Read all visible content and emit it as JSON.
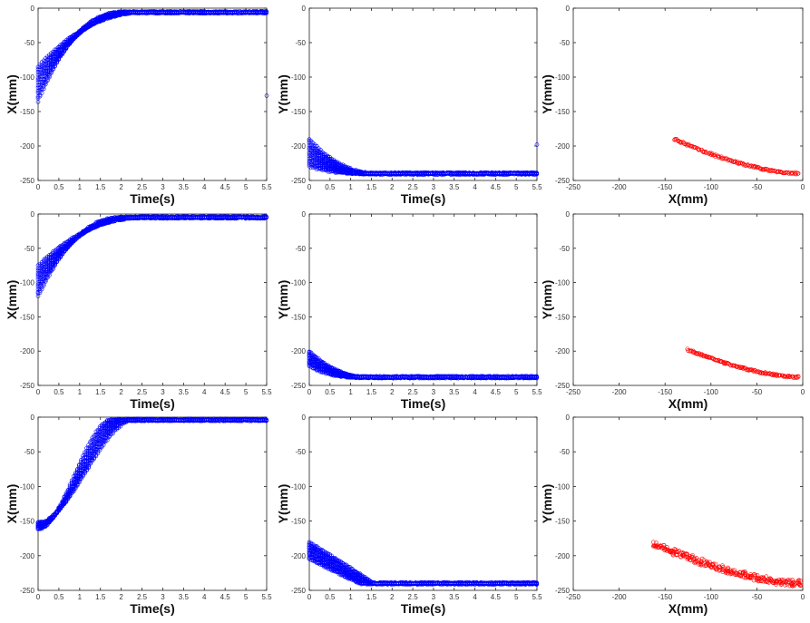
{
  "colors": {
    "blue": "#0000ff",
    "red": "#ff0000"
  },
  "chart_data": [
    {
      "type": "scatter",
      "panel": "row1-col1",
      "xlabel": "Time(s)",
      "ylabel": "X(mm)",
      "xlim": [
        0,
        5.5
      ],
      "ylim": [
        -250,
        0
      ],
      "xticks": [
        "0",
        "0.5",
        "1",
        "1.5",
        "2",
        "2.5",
        "3",
        "3.5",
        "4",
        "4.5",
        "5",
        "5.5"
      ],
      "yticks": [
        "0",
        "-50",
        "-100",
        "-150",
        "-200",
        "-250"
      ],
      "color": "blue",
      "series": [
        {
          "values": {
            "kind": "time",
            "y0": [
              -135,
              -85
            ],
            "t_end": 2.5,
            "y_end": -6,
            "dense": true,
            "outlier": [
              5.5,
              -127
            ]
          }
        }
      ]
    },
    {
      "type": "scatter",
      "panel": "row1-col2",
      "xlabel": "Time(s)",
      "ylabel": "Y(mm)",
      "xlim": [
        0,
        5.5
      ],
      "ylim": [
        -250,
        0
      ],
      "xticks": [
        "0",
        "0.5",
        "1",
        "1.5",
        "2",
        "2.5",
        "3",
        "3.5",
        "4",
        "4.5",
        "5",
        "5.5"
      ],
      "yticks": [
        "0",
        "-50",
        "-100",
        "-150",
        "-200",
        "-250"
      ],
      "color": "blue",
      "series": [
        {
          "values": {
            "kind": "time",
            "y0": [
              -230,
              -190
            ],
            "t_end": 1.6,
            "y_end": -240,
            "dense": true,
            "outlier": [
              5.5,
              -198
            ]
          }
        }
      ]
    },
    {
      "type": "scatter",
      "panel": "row1-col3",
      "xlabel": "X(mm)",
      "ylabel": "Y(mm)",
      "xlim": [
        -250,
        0
      ],
      "ylim": [
        -250,
        0
      ],
      "xticks": [
        "-250",
        "-200",
        "-150",
        "-100",
        "-50",
        "0"
      ],
      "yticks": [
        "0",
        "-50",
        "-100",
        "-150",
        "-200",
        "-250"
      ],
      "color": "red",
      "series": [
        {
          "values": {
            "kind": "xy",
            "x": [
              -140,
              -5
            ],
            "y": [
              -190,
              -240
            ],
            "width": 2.5
          }
        }
      ]
    },
    {
      "type": "scatter",
      "panel": "row2-col1",
      "xlabel": "Time(s)",
      "ylabel": "X(mm)",
      "xlim": [
        0,
        5.5
      ],
      "ylim": [
        -250,
        0
      ],
      "xticks": [
        "0",
        "0.5",
        "1",
        "1.5",
        "2",
        "2.5",
        "3",
        "3.5",
        "4",
        "4.5",
        "5",
        "5.5"
      ],
      "yticks": [
        "0",
        "-50",
        "-100",
        "-150",
        "-200",
        "-250"
      ],
      "color": "blue",
      "series": [
        {
          "values": {
            "kind": "time",
            "y0": [
              -120,
              -75
            ],
            "t_end": 2.5,
            "y_end": -5,
            "dense": true
          }
        }
      ]
    },
    {
      "type": "scatter",
      "panel": "row2-col2",
      "xlabel": "Time(s)",
      "ylabel": "Y(mm)",
      "xlim": [
        0,
        5.5
      ],
      "ylim": [
        -250,
        0
      ],
      "xticks": [
        "0",
        "0.5",
        "1",
        "1.5",
        "2",
        "2.5",
        "3",
        "3.5",
        "4",
        "4.5",
        "5",
        "5.5"
      ],
      "yticks": [
        "0",
        "-50",
        "-100",
        "-150",
        "-200",
        "-250"
      ],
      "color": "blue",
      "series": [
        {
          "values": {
            "kind": "time",
            "y0": [
              -222,
              -200
            ],
            "t_end": 1.4,
            "y_end": -238,
            "dense": true
          }
        }
      ]
    },
    {
      "type": "scatter",
      "panel": "row2-col3",
      "xlabel": "X(mm)",
      "ylabel": "Y(mm)",
      "xlim": [
        -250,
        0
      ],
      "ylim": [
        -250,
        0
      ],
      "xticks": [
        "-250",
        "-200",
        "-150",
        "-100",
        "-50",
        "0"
      ],
      "yticks": [
        "0",
        "-50",
        "-100",
        "-150",
        "-200",
        "-250"
      ],
      "color": "red",
      "series": [
        {
          "values": {
            "kind": "xy",
            "x": [
              -125,
              -5
            ],
            "y": [
              -198,
              -238
            ],
            "width": 2.5
          }
        }
      ]
    },
    {
      "type": "scatter",
      "panel": "row3-col1",
      "xlabel": "Time(s)",
      "ylabel": "X(mm)",
      "xlim": [
        0,
        5.5
      ],
      "ylim": [
        -250,
        0
      ],
      "xticks": [
        "0",
        "0.5",
        "1",
        "1.5",
        "2",
        "2.5",
        "3",
        "3.5",
        "4",
        "4.5",
        "5",
        "5.5"
      ],
      "yticks": [
        "0",
        "-50",
        "-100",
        "-150",
        "-200",
        "-250"
      ],
      "color": "blue",
      "series": [
        {
          "values": {
            "kind": "time",
            "y0": [
              -162,
              -152
            ],
            "t_end": 2.2,
            "y_end": -4,
            "dense": true,
            "shape": "sigmoid"
          }
        }
      ]
    },
    {
      "type": "scatter",
      "panel": "row3-col2",
      "xlabel": "Time(s)",
      "ylabel": "Y(mm)",
      "xlim": [
        0,
        5.5
      ],
      "ylim": [
        -250,
        0
      ],
      "xticks": [
        "0",
        "0.5",
        "1",
        "1.5",
        "2",
        "2.5",
        "3",
        "3.5",
        "4",
        "4.5",
        "5",
        "5.5"
      ],
      "yticks": [
        "0",
        "-50",
        "-100",
        "-150",
        "-200",
        "-250"
      ],
      "color": "blue",
      "series": [
        {
          "values": {
            "kind": "time",
            "y0": [
              -205,
              -180
            ],
            "t_end": 1.5,
            "y_end": -240,
            "dense": true,
            "shape": "linear"
          }
        }
      ]
    },
    {
      "type": "scatter",
      "panel": "row3-col3",
      "xlabel": "X(mm)",
      "ylabel": "Y(mm)",
      "xlim": [
        -250,
        0
      ],
      "ylim": [
        -250,
        0
      ],
      "xticks": [
        "-250",
        "-200",
        "-150",
        "-100",
        "-50",
        "0"
      ],
      "yticks": [
        "0",
        "-50",
        "-100",
        "-150",
        "-200",
        "-250"
      ],
      "color": "red",
      "series": [
        {
          "values": {
            "kind": "xy",
            "x": [
              -162,
              -2
            ],
            "y": [
              -182,
              -240
            ],
            "width": 9
          }
        }
      ]
    }
  ]
}
